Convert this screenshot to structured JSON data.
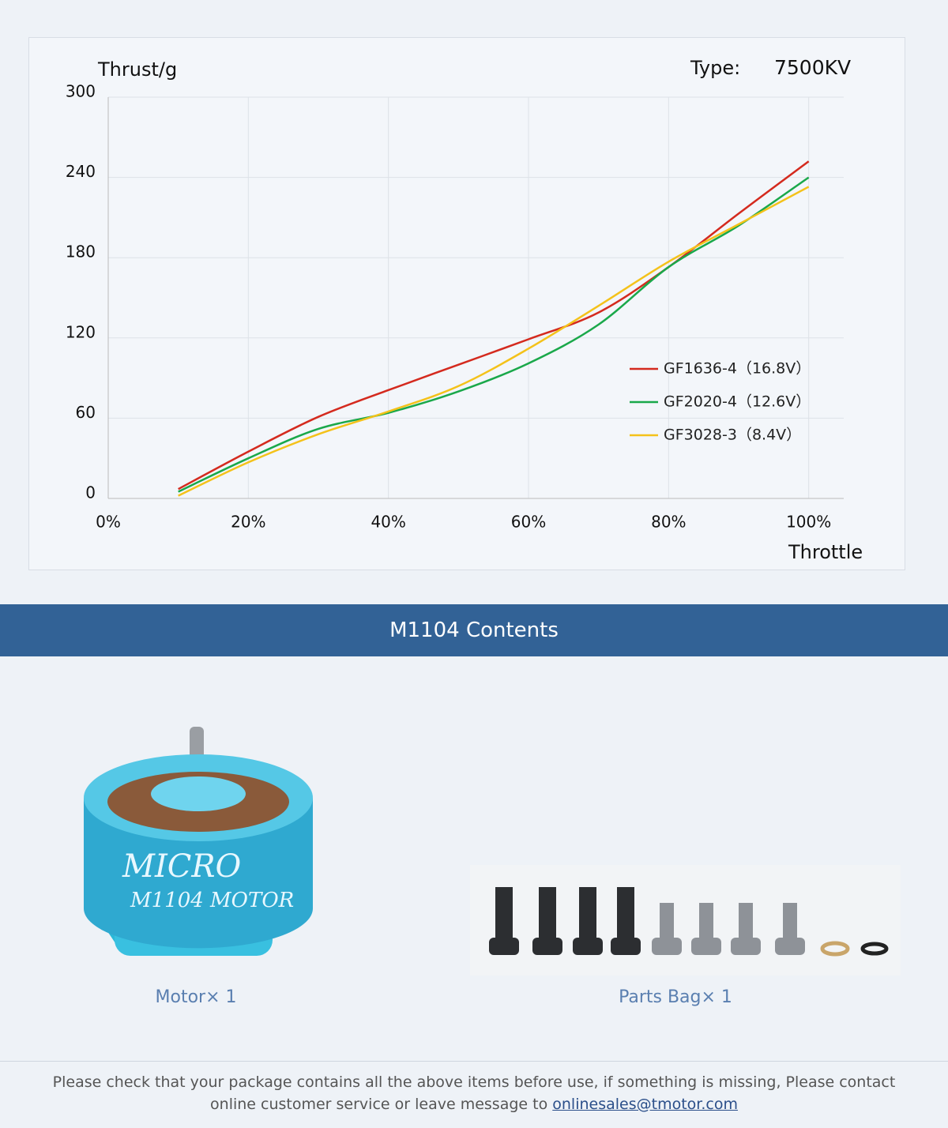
{
  "chart_data": {
    "type": "line",
    "y_label": "Thrust/g",
    "type_label": "Type:",
    "type_value": "7500KV",
    "x_label": "Throttle",
    "x": [
      10,
      20,
      30,
      40,
      50,
      60,
      70,
      80,
      90,
      100
    ],
    "series": [
      {
        "name": "GF1636-4（16.8V）",
        "color": "#d42a1e",
        "values": [
          7,
          35,
          61,
          81,
          100,
          119,
          139,
          173,
          213,
          252
        ]
      },
      {
        "name": "GF2020-4（12.6V）",
        "color": "#1aa84a",
        "values": [
          5,
          30,
          52,
          64,
          80,
          101,
          130,
          173,
          204,
          240
        ]
      },
      {
        "name": "GF3028-3（8.4V）",
        "color": "#f4c21a",
        "values": [
          2,
          27,
          48,
          65,
          84,
          112,
          144,
          177,
          205,
          233
        ]
      }
    ],
    "xlim": [
      0,
      105
    ],
    "xticks": [
      {
        "value": 0,
        "label": "0%"
      },
      {
        "value": 20,
        "label": "20%"
      },
      {
        "value": 40,
        "label": "40%"
      },
      {
        "value": 60,
        "label": "60%"
      },
      {
        "value": 80,
        "label": "80%"
      },
      {
        "value": 100,
        "label": "100%"
      }
    ],
    "ylim": [
      0,
      300
    ],
    "yticks": [
      0,
      60,
      120,
      180,
      240,
      300
    ],
    "grid": true
  },
  "contents": {
    "title": "M1104 Contents",
    "items": [
      "Motor× 1",
      "Parts Bag× 1"
    ]
  },
  "footer": {
    "text": "Please check that your package contains all the above items before use, if something is missing, Please contact online customer service or leave message to",
    "link": "onlinesales@tmotor.com"
  }
}
